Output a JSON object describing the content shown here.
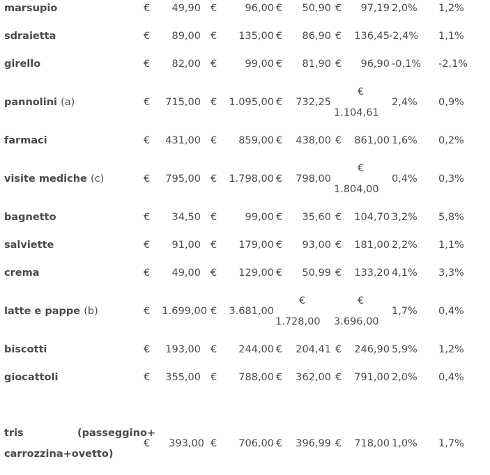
{
  "currency": "€",
  "rows": [
    {
      "name": "marsupio",
      "note": "",
      "v": [
        "49,90",
        "96,00",
        "50,90",
        "97,19"
      ],
      "p1": "2,0%",
      "p2": "1,2%"
    },
    {
      "name": "sdraietta",
      "note": "",
      "v": [
        "89,00",
        "135,00",
        "86,90",
        "136,45"
      ],
      "p1": "-2,4%",
      "p2": "1,1%"
    },
    {
      "name": "girello",
      "note": "",
      "v": [
        "82,00",
        "99,00",
        "81,90",
        "96,90"
      ],
      "p1": "-0,1%",
      "p2": "-2,1%"
    },
    {
      "name": "pannolini",
      "note": "(a)",
      "v": [
        "715,00",
        "1.095,00",
        "732,25",
        "1.104,61"
      ],
      "p1": "2,4%",
      "p2": "0,9%"
    },
    {
      "name": "farmaci",
      "note": "",
      "v": [
        "431,00",
        "859,00",
        "438,00",
        "861,00"
      ],
      "p1": "1,6%",
      "p2": "0,2%"
    },
    {
      "name": "visite mediche",
      "note": "(c)",
      "v": [
        "795,00",
        "1.798,00",
        "798,00",
        "1.804,00"
      ],
      "p1": "0,4%",
      "p2": "0,3%"
    },
    {
      "name": "bagnetto",
      "note": "",
      "v": [
        "34,50",
        "99,00",
        "35,60",
        "104,70"
      ],
      "p1": "3,2%",
      "p2": "5,8%"
    },
    {
      "name": "salviette",
      "note": "",
      "v": [
        "91,00",
        "179,00",
        "93,00",
        "181,00"
      ],
      "p1": "2,2%",
      "p2": "1,1%"
    },
    {
      "name": "crema",
      "note": "",
      "v": [
        "49,00",
        "129,00",
        "50,99",
        "133,20"
      ],
      "p1": "4,1%",
      "p2": "3,3%"
    },
    {
      "name": "latte e pappe",
      "note": "(b)",
      "v": [
        "1.699,00",
        "3.681,00",
        "1.728,00",
        "3.696,00"
      ],
      "p1": "1,7%",
      "p2": "0,4%"
    },
    {
      "name": "biscotti",
      "note": "",
      "v": [
        "193,00",
        "244,00",
        "204,41",
        "246,90"
      ],
      "p1": "5,9%",
      "p2": "1,2%"
    },
    {
      "name": "giocattoli",
      "note": "",
      "v": [
        "355,00",
        "788,00",
        "362,00",
        "791,00"
      ],
      "p1": "2,0%",
      "p2": "0,4%"
    },
    {
      "name_line1": "tris",
      "name_line1b": "(passeggino+",
      "name_line2": "carrozzina+ovetto)",
      "v": [
        "393,00",
        "706,00",
        "396,99",
        "718,00"
      ],
      "p1": "1,0%",
      "p2": "1,7%"
    }
  ]
}
